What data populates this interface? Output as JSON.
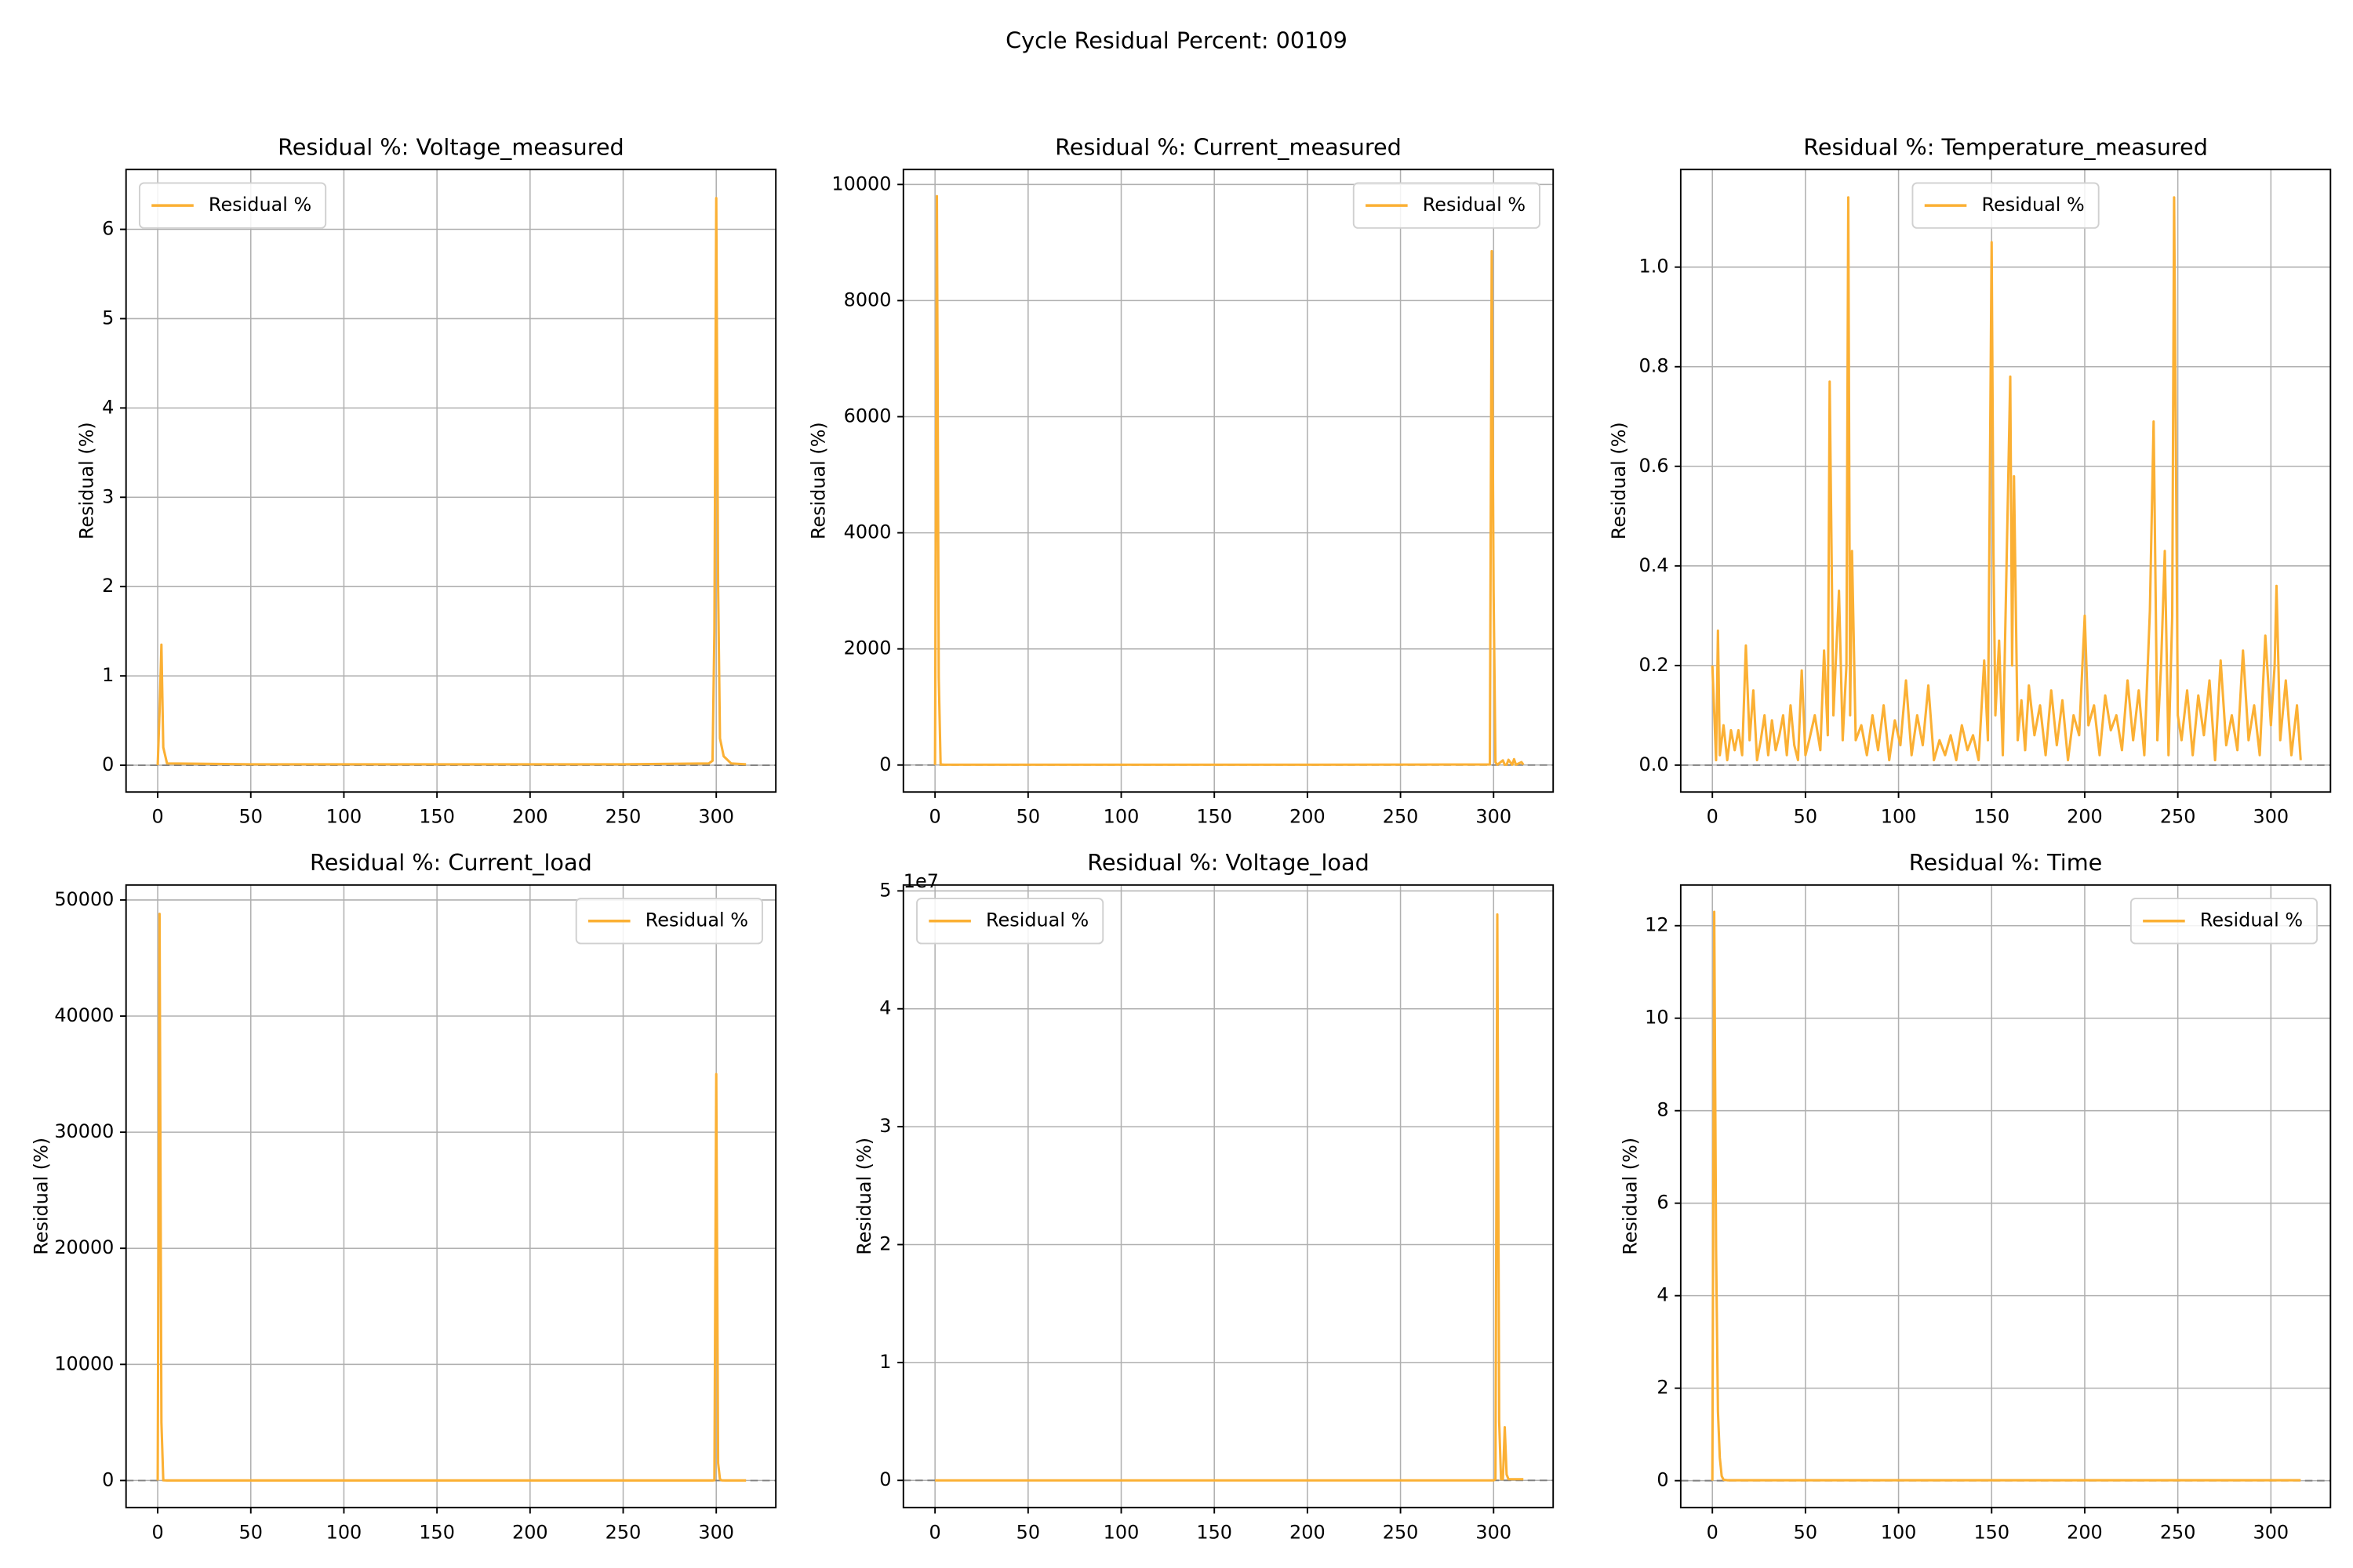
{
  "title": "Cycle Residual Percent: 00109",
  "chart_data": [
    {
      "type": "line",
      "title": "Residual %: Voltage_measured",
      "ylabel": "Residual (%)",
      "grid": true,
      "legend": "upper left",
      "reference_line": 0,
      "xlim": [
        -17,
        332
      ],
      "xticks": [
        0,
        50,
        100,
        150,
        200,
        250,
        300
      ],
      "ylim": [
        -0.3,
        6.67
      ],
      "yticks": [
        0,
        1,
        2,
        3,
        4,
        5,
        6
      ],
      "x": [
        0,
        1,
        2,
        3,
        5,
        50,
        100,
        150,
        200,
        250,
        296,
        298,
        299,
        300,
        301,
        302,
        304,
        308,
        316
      ],
      "series": [
        {
          "name": "Residual %",
          "color": "#fbb034",
          "values": [
            0,
            0.6,
            1.35,
            0.2,
            0.02,
            0.01,
            0.01,
            0.01,
            0.01,
            0.01,
            0.02,
            0.05,
            1.5,
            6.35,
            2.0,
            0.3,
            0.1,
            0.02,
            0.01
          ]
        }
      ]
    },
    {
      "type": "line",
      "title": "Residual %: Current_measured",
      "ylabel": "Residual (%)",
      "grid": true,
      "legend": "upper right",
      "reference_line": 0,
      "xlim": [
        -17,
        332
      ],
      "xticks": [
        0,
        50,
        100,
        150,
        200,
        250,
        300
      ],
      "ylim": [
        -465,
        10258
      ],
      "yticks": [
        0,
        2000,
        4000,
        6000,
        8000,
        10000
      ],
      "x": [
        0,
        1,
        2,
        3,
        5,
        100,
        200,
        298,
        299,
        300,
        301,
        302,
        305,
        306,
        307,
        308,
        310,
        311,
        312,
        315,
        316
      ],
      "series": [
        {
          "name": "Residual %",
          "color": "#fbb034",
          "values": [
            0,
            9800,
            1500,
            10,
            5,
            5,
            5,
            10,
            8850,
            3000,
            50,
            5,
            80,
            5,
            5,
            90,
            5,
            100,
            5,
            50,
            5
          ]
        }
      ]
    },
    {
      "type": "line",
      "title": "Residual %: Temperature_measured",
      "ylabel": "Residual (%)",
      "grid": true,
      "legend": "upper center",
      "reference_line": 0,
      "xlim": [
        -17,
        332
      ],
      "xticks": [
        0,
        50,
        100,
        150,
        200,
        250,
        300
      ],
      "ylim": [
        -0.054,
        1.196
      ],
      "yticks": [
        {
          "value": 0,
          "label": "0.0"
        },
        0.2,
        0.4,
        0.6,
        0.8,
        {
          "value": 1,
          "label": "1.0"
        }
      ],
      "x": [
        0,
        2,
        3,
        4,
        6,
        8,
        10,
        12,
        14,
        16,
        18,
        20,
        22,
        24,
        26,
        28,
        30,
        32,
        34,
        36,
        38,
        40,
        42,
        44,
        46,
        48,
        50,
        52,
        55,
        58,
        60,
        62,
        63,
        65,
        68,
        70,
        72,
        73,
        74,
        75,
        77,
        80,
        83,
        86,
        89,
        92,
        95,
        98,
        101,
        104,
        107,
        110,
        113,
        116,
        119,
        122,
        125,
        128,
        131,
        134,
        137,
        140,
        143,
        146,
        148,
        150,
        151,
        152,
        154,
        156,
        158,
        160,
        161,
        162,
        164,
        166,
        168,
        170,
        173,
        176,
        179,
        182,
        185,
        188,
        191,
        194,
        197,
        200,
        202,
        205,
        208,
        211,
        214,
        217,
        220,
        223,
        226,
        229,
        232,
        235,
        237,
        239,
        241,
        243,
        245,
        247,
        248,
        250,
        252,
        255,
        258,
        261,
        264,
        267,
        270,
        273,
        276,
        279,
        282,
        285,
        288,
        291,
        294,
        297,
        300,
        302,
        303,
        305,
        308,
        311,
        314,
        316
      ],
      "series": [
        {
          "name": "Residual %",
          "color": "#fbb034",
          "values": [
            0.2,
            0.01,
            0.27,
            0.02,
            0.08,
            0.01,
            0.07,
            0.03,
            0.07,
            0.02,
            0.24,
            0.05,
            0.15,
            0.01,
            0.05,
            0.1,
            0.02,
            0.09,
            0.03,
            0.06,
            0.1,
            0.02,
            0.12,
            0.04,
            0.01,
            0.19,
            0.02,
            0.05,
            0.1,
            0.03,
            0.23,
            0.06,
            0.77,
            0.1,
            0.35,
            0.05,
            0.2,
            1.14,
            0.1,
            0.43,
            0.05,
            0.08,
            0.02,
            0.1,
            0.03,
            0.12,
            0.01,
            0.09,
            0.04,
            0.17,
            0.02,
            0.1,
            0.04,
            0.16,
            0.01,
            0.05,
            0.02,
            0.06,
            0.01,
            0.08,
            0.03,
            0.06,
            0.01,
            0.21,
            0.05,
            1.05,
            0.42,
            0.1,
            0.25,
            0.02,
            0.4,
            0.78,
            0.2,
            0.58,
            0.05,
            0.13,
            0.03,
            0.16,
            0.06,
            0.12,
            0.02,
            0.15,
            0.04,
            0.13,
            0.01,
            0.1,
            0.06,
            0.3,
            0.08,
            0.12,
            0.02,
            0.14,
            0.07,
            0.1,
            0.03,
            0.17,
            0.05,
            0.15,
            0.02,
            0.31,
            0.69,
            0.05,
            0.2,
            0.43,
            0.02,
            0.3,
            1.14,
            0.1,
            0.05,
            0.15,
            0.02,
            0.14,
            0.06,
            0.17,
            0.01,
            0.21,
            0.04,
            0.1,
            0.03,
            0.23,
            0.05,
            0.12,
            0.02,
            0.26,
            0.08,
            0.2,
            0.36,
            0.05,
            0.17,
            0.02,
            0.12,
            0.01
          ]
        }
      ]
    },
    {
      "type": "line",
      "title": "Residual %: Current_load",
      "ylabel": "Residual (%)",
      "grid": true,
      "legend": "upper right",
      "reference_line": 0,
      "xlim": [
        -17,
        332
      ],
      "xticks": [
        0,
        50,
        100,
        150,
        200,
        250,
        300
      ],
      "ylim": [
        -2325,
        51290
      ],
      "yticks": [
        0,
        10000,
        20000,
        30000,
        40000,
        50000
      ],
      "x": [
        0,
        1,
        2,
        3,
        5,
        100,
        200,
        298,
        299,
        300,
        301,
        302,
        303,
        305,
        316
      ],
      "series": [
        {
          "name": "Residual %",
          "color": "#fbb034",
          "values": [
            0,
            48800,
            5000,
            20,
            5,
            5,
            5,
            5,
            20,
            35000,
            1500,
            100,
            10,
            5,
            5
          ]
        }
      ]
    },
    {
      "type": "line",
      "title": "Residual %: Voltage_load",
      "ylabel": "Residual (%)",
      "y_offset_label": "1e7",
      "grid": true,
      "legend": "upper left",
      "reference_line": 0,
      "xlim": [
        -17,
        332
      ],
      "xticks": [
        0,
        50,
        100,
        150,
        200,
        250,
        300
      ],
      "ylim": [
        -0.23,
        5.05
      ],
      "yticks": [
        0,
        1,
        2,
        3,
        4,
        5
      ],
      "x": [
        0,
        100,
        200,
        300,
        301,
        302,
        303,
        304,
        305,
        306,
        307,
        308,
        316
      ],
      "series": [
        {
          "name": "Residual %",
          "color": "#fbb034",
          "values": [
            0,
            0,
            0,
            0,
            0.01,
            4.8,
            0.5,
            0.01,
            0.01,
            0.45,
            0.05,
            0.01,
            0.01
          ]
        }
      ]
    },
    {
      "type": "line",
      "title": "Residual %: Time",
      "ylabel": "Residual (%)",
      "grid": true,
      "legend": "upper right",
      "reference_line": 0,
      "xlim": [
        -17,
        332
      ],
      "xticks": [
        0,
        50,
        100,
        150,
        200,
        250,
        300
      ],
      "ylim": [
        -0.58,
        12.88
      ],
      "yticks": [
        0,
        2,
        4,
        6,
        8,
        10,
        12
      ],
      "x": [
        0,
        1,
        2,
        3,
        4,
        5,
        6,
        8,
        50,
        100,
        200,
        300,
        316
      ],
      "series": [
        {
          "name": "Residual %",
          "color": "#fbb034",
          "values": [
            0,
            12.3,
            5,
            1.5,
            0.5,
            0.1,
            0.02,
            0.01,
            0.01,
            0.01,
            0.01,
            0.01,
            0.01
          ]
        }
      ]
    }
  ]
}
